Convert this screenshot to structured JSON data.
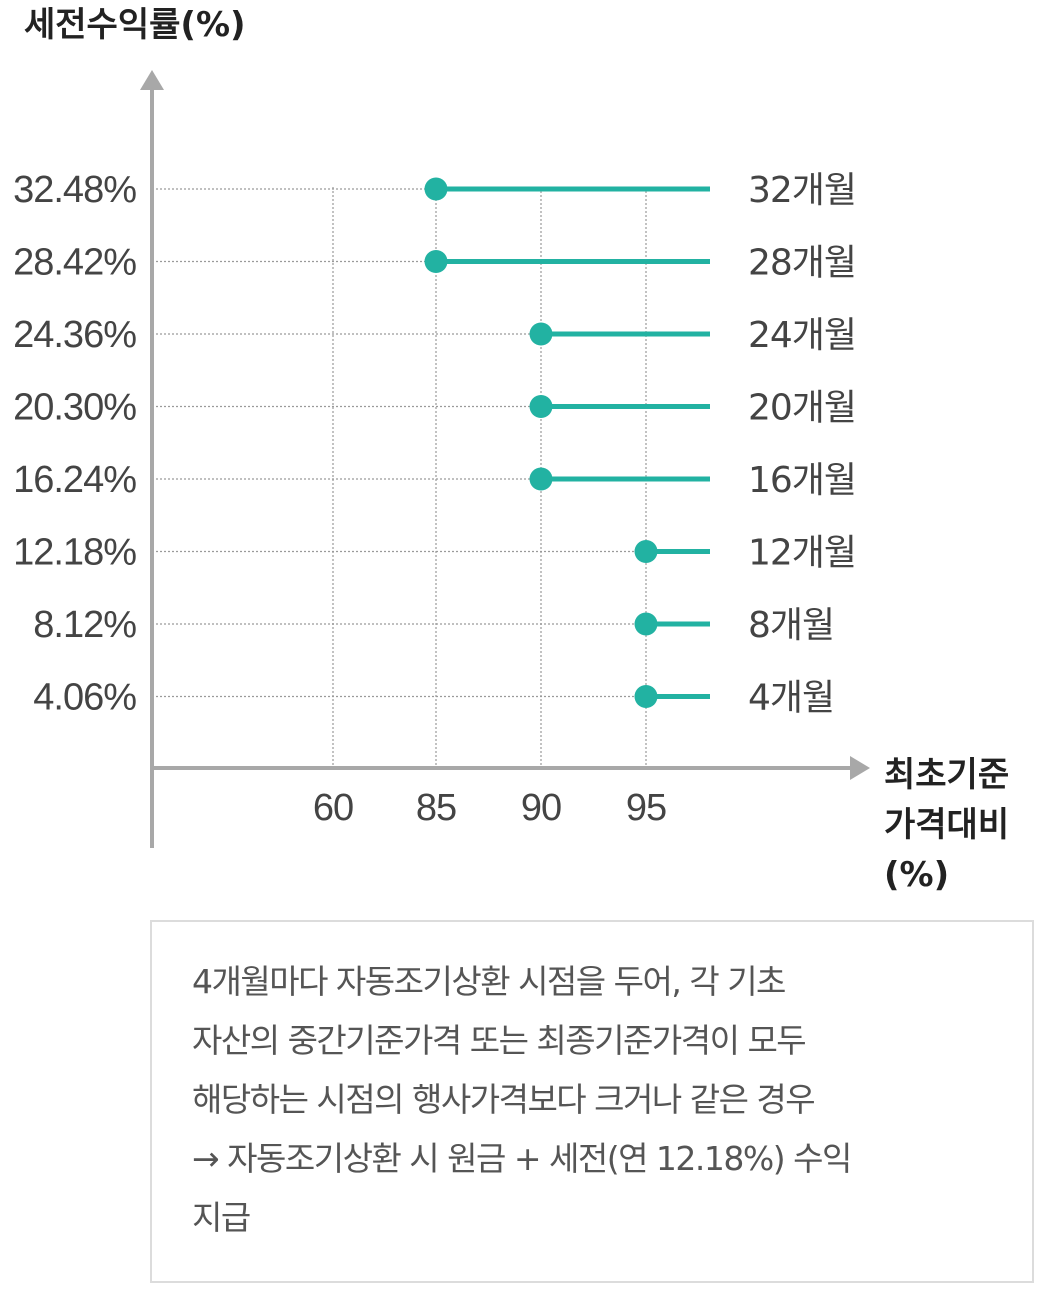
{
  "chart_data": {
    "type": "line",
    "title": "",
    "ylabel": "세전수익률(%)",
    "xlabel_lines": [
      "최초기준",
      "가격대비",
      "(%)"
    ],
    "x_ticks": [
      60,
      85,
      90,
      95
    ],
    "y_ticks": [
      "32.48%",
      "28.42%",
      "24.36%",
      "20.30%",
      "16.24%",
      "12.18%",
      "8.12%",
      "4.06%"
    ],
    "series_color": "#22b2a2",
    "grid": true,
    "series": [
      {
        "name": "32개월",
        "y": 32.48,
        "x": 85
      },
      {
        "name": "28개월",
        "y": 28.42,
        "x": 85
      },
      {
        "name": "24개월",
        "y": 24.36,
        "x": 90
      },
      {
        "name": "20개월",
        "y": 20.3,
        "x": 90
      },
      {
        "name": "16개월",
        "y": 16.24,
        "x": 90
      },
      {
        "name": "12개월",
        "y": 12.18,
        "x": 95
      },
      {
        "name": "8개월",
        "y": 8.12,
        "x": 95
      },
      {
        "name": "4개월",
        "y": 4.06,
        "x": 95
      }
    ]
  },
  "note": {
    "lines": [
      "4개월마다 자동조기상환 시점을 두어, 각 기초",
      "자산의 중간기준가격 또는 최종기준가격이 모두",
      "해당하는 시점의 행사가격보다 크거나 같은 경우",
      "→ 자동조기상환 시 원금 + 세전(연 12.18%) 수익",
      "지급"
    ]
  }
}
